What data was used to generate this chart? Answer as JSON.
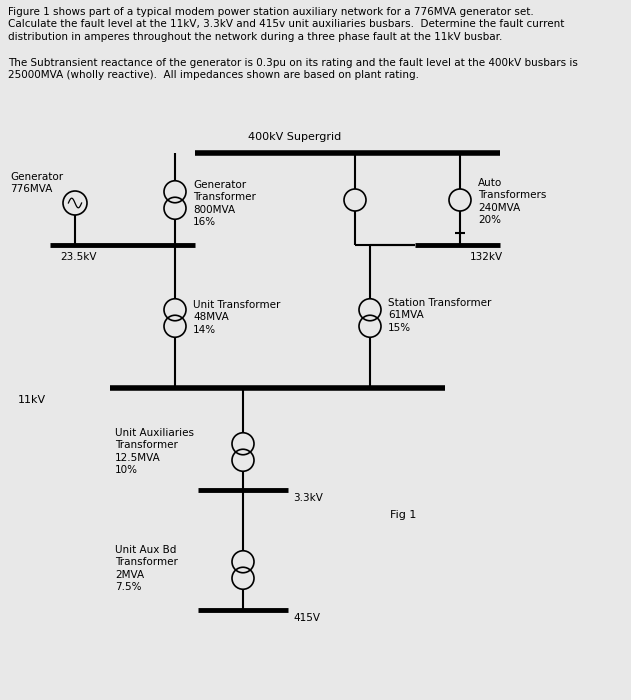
{
  "title_text": "Figure 1 shows part of a typical modem power station auxiliary network for a 776MVA generator set.\nCalculate the fault level at the 11kV, 3.3kV and 415v unit auxiliaries busbars.  Determine the fault current\ndistribution in amperes throughout the network during a three phase fault at the 11kV busbar.",
  "subtitle_text": "The Subtransient reactance of the generator is 0.3pu on its rating and the fault level at the 400kV busbars is\n25000MVA (wholly reactive).  All impedances shown are based on plant rating.",
  "bg_color": "#e8e8e8",
  "line_color": "#000000",
  "text_color": "#000000",
  "supergrid_label": "400kV Supergrid",
  "bus_23kV_label": "23.5kV",
  "bus_11kV_label": "11kV",
  "bus_33kV_label": "3.3kV",
  "bus_415V_label": "415V",
  "bus_132kV_label": "132kV",
  "gen_label": "Generator\n776MVA",
  "gen_transformer_label": "Generator\nTransformer\n800MVA\n16%",
  "auto_transformer_label": "Auto\nTransformers\n240MVA\n20%",
  "unit_transformer_label": "Unit Transformer\n48MVA\n14%",
  "station_transformer_label": "Station Transformer\n61MVA\n15%",
  "unit_aux_transformer_label": "Unit Auxiliaries\nTransformer\n12.5MVA\n10%",
  "unit_aux_bd_transformer_label": "Unit Aux Bd\nTransformer\n2MVA\n7.5%",
  "fig_label": "Fig 1"
}
